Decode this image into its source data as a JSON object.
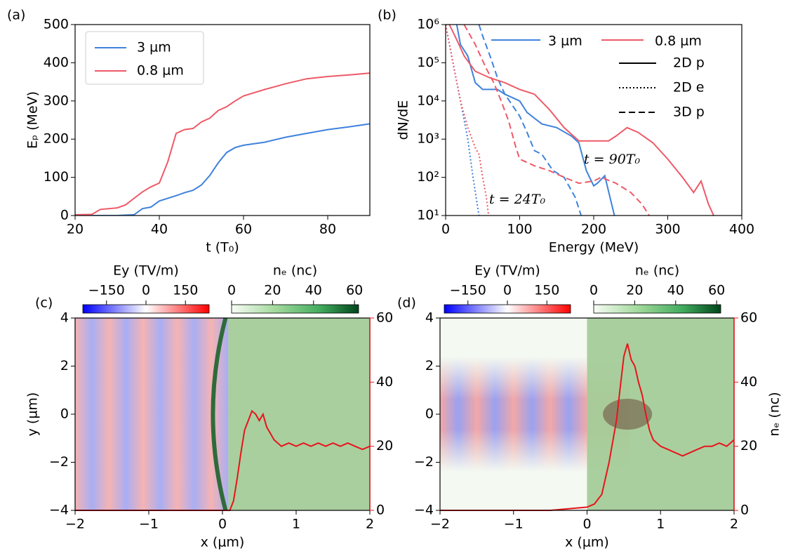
{
  "chart_data": [
    {
      "type": "line",
      "panel_label": "(a)",
      "xlabel": "t (T₀)",
      "ylabel": "Eₚ (MeV)",
      "xlim": [
        20,
        90
      ],
      "xticks": [
        20,
        40,
        60,
        80
      ],
      "ylim": [
        0,
        500
      ],
      "yticks": [
        0,
        100,
        200,
        300,
        400,
        500
      ],
      "legend": "upper left",
      "series": [
        {
          "name": "3 µm",
          "color": "#3f82dc",
          "x": [
            20,
            30,
            34,
            36,
            38,
            40,
            44,
            46,
            48,
            50,
            52,
            54,
            56,
            58,
            60,
            65,
            70,
            75,
            80,
            85,
            90
          ],
          "values": [
            0,
            0,
            2,
            18,
            22,
            38,
            52,
            60,
            66,
            80,
            105,
            138,
            165,
            178,
            184,
            192,
            205,
            215,
            225,
            232,
            240
          ]
        },
        {
          "name": "0.8 µm",
          "color": "#ee5a68",
          "x": [
            20,
            24,
            26,
            30,
            32,
            34,
            36,
            38,
            40,
            42,
            44,
            46,
            48,
            50,
            52,
            54,
            56,
            58,
            60,
            65,
            70,
            75,
            80,
            85,
            90
          ],
          "values": [
            2,
            3,
            16,
            20,
            28,
            45,
            62,
            75,
            85,
            140,
            215,
            225,
            228,
            245,
            255,
            275,
            285,
            300,
            313,
            330,
            345,
            358,
            364,
            368,
            373
          ]
        }
      ]
    },
    {
      "type": "line",
      "panel_label": "(b)",
      "xlabel": "Energy (MeV)",
      "ylabel": "dN/dE",
      "log_y": true,
      "xlim": [
        0,
        400
      ],
      "xticks": [
        0,
        100,
        200,
        300,
        400
      ],
      "ylim": [
        10,
        1000000
      ],
      "yticks": [
        {
          "value": 10,
          "label": "10¹"
        },
        {
          "value": 100,
          "label": "10²"
        },
        {
          "value": 1000,
          "label": "10³"
        },
        {
          "value": 10000,
          "label": "10⁴"
        },
        {
          "value": 100000,
          "label": "10⁵"
        },
        {
          "value": 1000000,
          "label": "10⁶"
        }
      ],
      "legend": "upper right",
      "styles": [
        {
          "name": "2D p",
          "dash": "solid"
        },
        {
          "name": "2D e",
          "dash": "dotted"
        },
        {
          "name": "3D p",
          "dash": "dashed"
        }
      ],
      "annotations": [
        "t = 90T₀",
        "t = 24T₀"
      ],
      "series": [
        {
          "name": "3 µm",
          "color": "#3f82dc",
          "curves": [
            {
              "x": [
                15,
                20,
                30,
                40,
                50,
                60,
                70,
                80,
                100,
                110,
                130,
                150,
                170,
                180,
                190,
                200,
                205,
                215,
                222,
                228
              ],
              "values": [
                1000000,
                300000,
                150000,
                30000,
                20000,
                20000,
                20000,
                15000,
                10000,
                5000,
                2500,
                2000,
                1200,
                800,
                150,
                60,
                70,
                110,
                30,
                10
              ]
            },
            {
              "x": [
                0,
                10,
                20,
                30,
                37,
                45
              ],
              "values": [
                1000000,
                100000,
                10000,
                1000,
                100,
                10
              ]
            },
            {
              "x": [
                45,
                50,
                60,
                70,
                80,
                100,
                110,
                120,
                130,
                145,
                160,
                175,
                183
              ],
              "values": [
                1000000,
                500000,
                150000,
                40000,
                15000,
                4000,
                1500,
                500,
                400,
                150,
                100,
                30,
                10
              ]
            }
          ]
        },
        {
          "name": "0.8 µm",
          "color": "#ee5a68",
          "curves": [
            {
              "x": [
                5,
                15,
                25,
                40,
                60,
                80,
                100,
                120,
                140,
                160,
                180,
                200,
                220,
                230,
                245,
                260,
                280,
                300,
                320,
                335,
                345,
                355,
                362
              ],
              "values": [
                1000000,
                400000,
                150000,
                60000,
                40000,
                30000,
                20000,
                15000,
                6000,
                2000,
                900,
                900,
                900,
                1200,
                2000,
                1500,
                800,
                300,
                100,
                40,
                80,
                20,
                10
              ]
            },
            {
              "x": [
                0,
                10,
                20,
                30,
                40,
                45,
                50,
                55,
                58
              ],
              "values": [
                1000000,
                100000,
                10000,
                2000,
                600,
                400,
                100,
                30,
                10
              ]
            },
            {
              "x": [
                25,
                40,
                55,
                65,
                75,
                85,
                95,
                100,
                120,
                140,
                160,
                180,
                200,
                210,
                230,
                250,
                265,
                275
              ],
              "values": [
                1000000,
                300000,
                70000,
                30000,
                10000,
                3000,
                600,
                300,
                200,
                150,
                100,
                70,
                80,
                100,
                70,
                40,
                20,
                10
              ]
            }
          ]
        }
      ]
    },
    {
      "type": "heatmap",
      "panel_label": "(c)",
      "xlabel": "x (µm)",
      "ylabel": "y (µm)",
      "xlim": [
        -2,
        2
      ],
      "xticks": [
        {
          "value": -2,
          "label": "−2"
        },
        {
          "value": -1,
          "label": "−1"
        },
        0,
        1,
        2
      ],
      "ylim": [
        -4,
        4
      ],
      "yticks": [
        {
          "value": -4,
          "label": "−4"
        },
        {
          "value": -2,
          "label": "−2"
        },
        0,
        2,
        4
      ],
      "y2lim": [
        0,
        60
      ],
      "y2ticks": [
        0,
        20,
        40,
        60
      ],
      "colorbars": [
        {
          "label": "Ey (TV/m)",
          "lim": [
            -240,
            240
          ],
          "ticks": [
            {
              "value": -150,
              "label": "−150"
            },
            0,
            150
          ]
        },
        {
          "label": "nₑ (nc)",
          "lim": [
            0,
            62
          ],
          "ticks": [
            0,
            20,
            40,
            60
          ]
        }
      ],
      "series": [
        {
          "color": "#e8141c",
          "axis": "y2",
          "x": [
            -2,
            0.1,
            0.15,
            0.2,
            0.25,
            0.3,
            0.35,
            0.4,
            0.45,
            0.5,
            0.55,
            0.6,
            0.65,
            0.7,
            0.75,
            0.8,
            0.9,
            1,
            1.1,
            1.2,
            1.3,
            1.4,
            1.5,
            1.6,
            1.7,
            1.8,
            1.9,
            2
          ],
          "values": [
            0,
            0,
            3,
            10,
            18,
            25,
            28,
            31,
            30,
            28,
            30,
            26,
            24,
            22,
            21,
            20,
            21,
            20,
            21,
            20,
            21,
            20,
            21,
            20,
            21,
            20,
            19,
            20
          ]
        }
      ]
    },
    {
      "type": "heatmap",
      "panel_label": "(d)",
      "xlabel": "x (µm)",
      "y2label": "nₑ (nc)",
      "xlim": [
        -2,
        2
      ],
      "xticks": [
        {
          "value": -2,
          "label": "−2"
        },
        {
          "value": -1,
          "label": "−1"
        },
        0,
        1,
        2
      ],
      "ylim": [
        -4,
        4
      ],
      "yticks": [
        {
          "value": -4,
          "label": "−4"
        },
        {
          "value": -2,
          "label": "−2"
        },
        0,
        2,
        4
      ],
      "y2lim": [
        0,
        60
      ],
      "y2ticks": [
        0,
        20,
        40,
        60
      ],
      "colorbars": [
        {
          "label": "Ey (TV/m)",
          "lim": [
            -240,
            240
          ],
          "ticks": [
            {
              "value": -150,
              "label": "−150"
            },
            0,
            150
          ]
        },
        {
          "label": "nₑ (nc)",
          "lim": [
            0,
            62
          ],
          "ticks": [
            0,
            20,
            40,
            60
          ]
        }
      ],
      "series": [
        {
          "color": "#e8141c",
          "axis": "y2",
          "x": [
            -2,
            -0.5,
            0,
            0.1,
            0.2,
            0.3,
            0.4,
            0.45,
            0.5,
            0.55,
            0.6,
            0.65,
            0.7,
            0.75,
            0.8,
            0.85,
            0.9,
            1,
            1.1,
            1.2,
            1.3,
            1.4,
            1.5,
            1.6,
            1.7,
            1.8,
            1.9,
            2
          ],
          "values": [
            0,
            0,
            1,
            2,
            5,
            15,
            28,
            38,
            48,
            52,
            47,
            45,
            40,
            36,
            30,
            25,
            22,
            20,
            19,
            18,
            17,
            18,
            19,
            20,
            20,
            21,
            20,
            22
          ]
        }
      ]
    }
  ]
}
